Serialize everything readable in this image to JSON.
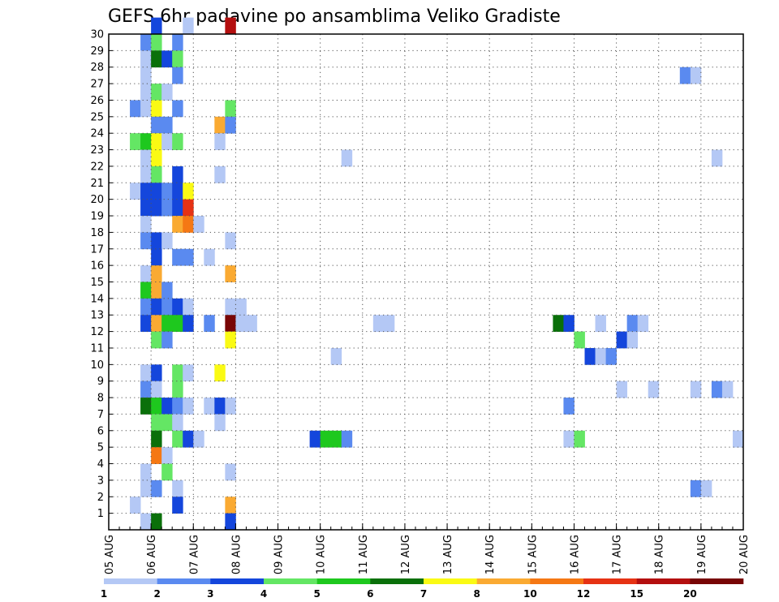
{
  "chart_data": {
    "type": "heatmap",
    "title": "GEFS 6hr padavine po ansamblima Veliko Gradiste",
    "xlabel": "",
    "ylabel": "",
    "x_ticks": [
      "05 AUG",
      "06 AUG",
      "07 AUG",
      "08 AUG",
      "09 AUG",
      "10 AUG",
      "11 AUG",
      "12 AUG",
      "13 AUG",
      "14 AUG",
      "15 AUG",
      "16 AUG",
      "17 AUG",
      "18 AUG",
      "19 AUG",
      "20 AUG"
    ],
    "y_ticks": [
      "1",
      "2",
      "3",
      "4",
      "5",
      "6",
      "7",
      "8",
      "9",
      "10",
      "11",
      "12",
      "13",
      "14",
      "15",
      "16",
      "17",
      "18",
      "19",
      "20",
      "21",
      "22",
      "23",
      "24",
      "25",
      "26",
      "27",
      "28",
      "29",
      "30"
    ],
    "y_range": [
      0,
      30
    ],
    "x_steps_per_day": 4,
    "x_total_steps": 60,
    "grid": true,
    "legend_position": "bottom",
    "legend": {
      "labels": [
        "1",
        "2",
        "3",
        "4",
        "5",
        "6",
        "7",
        "8",
        "10",
        "12",
        "15",
        "20"
      ],
      "colors": [
        "#b4c8f5",
        "#5a8af0",
        "#1446dc",
        "#64e664",
        "#1ec81e",
        "#0a700a",
        "#fafa14",
        "#faaa32",
        "#f57814",
        "#e63214",
        "#b40f0f",
        "#780505"
      ]
    },
    "cells": [
      [
        4,
        30,
        "#1446dc"
      ],
      [
        7,
        30,
        "#b4c8f5"
      ],
      [
        11,
        30,
        "#b40f0f"
      ],
      [
        3,
        29,
        "#5a8af0"
      ],
      [
        4,
        29,
        "#64e664"
      ],
      [
        6,
        29,
        "#5a8af0"
      ],
      [
        3,
        28,
        "#b4c8f5"
      ],
      [
        4,
        28,
        "#0a700a"
      ],
      [
        5,
        28,
        "#1446dc"
      ],
      [
        6,
        28,
        "#64e664"
      ],
      [
        3,
        27,
        "#b4c8f5"
      ],
      [
        6,
        27,
        "#5a8af0"
      ],
      [
        54,
        27,
        "#5a8af0"
      ],
      [
        55,
        27,
        "#b4c8f5"
      ],
      [
        3,
        26,
        "#b4c8f5"
      ],
      [
        4,
        26,
        "#64e664"
      ],
      [
        5,
        26,
        "#b4c8f5"
      ],
      [
        2,
        25,
        "#5a8af0"
      ],
      [
        3,
        25,
        "#b4c8f5"
      ],
      [
        4,
        25,
        "#fafa14"
      ],
      [
        6,
        25,
        "#5a8af0"
      ],
      [
        11,
        25,
        "#64e664"
      ],
      [
        4,
        24,
        "#5a8af0"
      ],
      [
        5,
        24,
        "#5a8af0"
      ],
      [
        10,
        24,
        "#faaa32"
      ],
      [
        11,
        24,
        "#5a8af0"
      ],
      [
        2,
        23,
        "#64e664"
      ],
      [
        3,
        23,
        "#1ec81e"
      ],
      [
        4,
        23,
        "#fafa14"
      ],
      [
        5,
        23,
        "#b4c8f5"
      ],
      [
        6,
        23,
        "#64e664"
      ],
      [
        10,
        23,
        "#b4c8f5"
      ],
      [
        3,
        22,
        "#b4c8f5"
      ],
      [
        4,
        22,
        "#fafa14"
      ],
      [
        22,
        22,
        "#b4c8f5"
      ],
      [
        57,
        22,
        "#b4c8f5"
      ],
      [
        3,
        21,
        "#b4c8f5"
      ],
      [
        4,
        21,
        "#64e664"
      ],
      [
        6,
        21,
        "#1446dc"
      ],
      [
        10,
        21,
        "#b4c8f5"
      ],
      [
        2,
        20,
        "#b4c8f5"
      ],
      [
        3,
        20,
        "#1446dc"
      ],
      [
        4,
        20,
        "#1446dc"
      ],
      [
        5,
        20,
        "#5a8af0"
      ],
      [
        6,
        20,
        "#1446dc"
      ],
      [
        7,
        20,
        "#fafa14"
      ],
      [
        3,
        19,
        "#1446dc"
      ],
      [
        4,
        19,
        "#1446dc"
      ],
      [
        5,
        19,
        "#5a8af0"
      ],
      [
        6,
        19,
        "#1446dc"
      ],
      [
        7,
        19,
        "#e63214"
      ],
      [
        3,
        18,
        "#b4c8f5"
      ],
      [
        6,
        18,
        "#faaa32"
      ],
      [
        7,
        18,
        "#f57814"
      ],
      [
        8,
        18,
        "#b4c8f5"
      ],
      [
        3,
        17,
        "#5a8af0"
      ],
      [
        4,
        17,
        "#1446dc"
      ],
      [
        5,
        17,
        "#b4c8f5"
      ],
      [
        11,
        17,
        "#b4c8f5"
      ],
      [
        4,
        16,
        "#1446dc"
      ],
      [
        6,
        16,
        "#5a8af0"
      ],
      [
        7,
        16,
        "#5a8af0"
      ],
      [
        9,
        16,
        "#b4c8f5"
      ],
      [
        3,
        15,
        "#b4c8f5"
      ],
      [
        4,
        15,
        "#faaa32"
      ],
      [
        11,
        15,
        "#faaa32"
      ],
      [
        3,
        14,
        "#1ec81e"
      ],
      [
        4,
        14,
        "#faaa32"
      ],
      [
        5,
        14,
        "#5a8af0"
      ],
      [
        3,
        13,
        "#5a8af0"
      ],
      [
        4,
        13,
        "#1446dc"
      ],
      [
        5,
        13,
        "#5a8af0"
      ],
      [
        6,
        13,
        "#1446dc"
      ],
      [
        7,
        13,
        "#b4c8f5"
      ],
      [
        11,
        13,
        "#b4c8f5"
      ],
      [
        12,
        13,
        "#b4c8f5"
      ],
      [
        3,
        12,
        "#1446dc"
      ],
      [
        4,
        12,
        "#faaa32"
      ],
      [
        5,
        12,
        "#1ec81e"
      ],
      [
        6,
        12,
        "#1ec81e"
      ],
      [
        7,
        12,
        "#1446dc"
      ],
      [
        9,
        12,
        "#5a8af0"
      ],
      [
        11,
        12,
        "#780505"
      ],
      [
        12,
        12,
        "#b4c8f5"
      ],
      [
        13,
        12,
        "#b4c8f5"
      ],
      [
        25,
        12,
        "#b4c8f5"
      ],
      [
        26,
        12,
        "#b4c8f5"
      ],
      [
        42,
        12,
        "#0a700a"
      ],
      [
        43,
        12,
        "#1446dc"
      ],
      [
        46,
        12,
        "#b4c8f5"
      ],
      [
        49,
        12,
        "#5a8af0"
      ],
      [
        50,
        12,
        "#b4c8f5"
      ],
      [
        4,
        11,
        "#64e664"
      ],
      [
        5,
        11,
        "#5a8af0"
      ],
      [
        11,
        11,
        "#fafa14"
      ],
      [
        44,
        11,
        "#64e664"
      ],
      [
        48,
        11,
        "#1446dc"
      ],
      [
        49,
        11,
        "#b4c8f5"
      ],
      [
        21,
        10,
        "#b4c8f5"
      ],
      [
        45,
        10,
        "#1446dc"
      ],
      [
        46,
        10,
        "#b4c8f5"
      ],
      [
        47,
        10,
        "#5a8af0"
      ],
      [
        3,
        9,
        "#b4c8f5"
      ],
      [
        4,
        9,
        "#1446dc"
      ],
      [
        6,
        9,
        "#64e664"
      ],
      [
        7,
        9,
        "#b4c8f5"
      ],
      [
        10,
        9,
        "#fafa14"
      ],
      [
        3,
        8,
        "#5a8af0"
      ],
      [
        4,
        8,
        "#b4c8f5"
      ],
      [
        6,
        8,
        "#64e664"
      ],
      [
        48,
        8,
        "#b4c8f5"
      ],
      [
        51,
        8,
        "#b4c8f5"
      ],
      [
        55,
        8,
        "#b4c8f5"
      ],
      [
        57,
        8,
        "#5a8af0"
      ],
      [
        58,
        8,
        "#b4c8f5"
      ],
      [
        3,
        7,
        "#0a700a"
      ],
      [
        4,
        7,
        "#1ec81e"
      ],
      [
        5,
        7,
        "#1446dc"
      ],
      [
        6,
        7,
        "#5a8af0"
      ],
      [
        7,
        7,
        "#b4c8f5"
      ],
      [
        9,
        7,
        "#b4c8f5"
      ],
      [
        10,
        7,
        "#1446dc"
      ],
      [
        11,
        7,
        "#b4c8f5"
      ],
      [
        43,
        7,
        "#5a8af0"
      ],
      [
        4,
        6,
        "#64e664"
      ],
      [
        5,
        6,
        "#64e664"
      ],
      [
        6,
        6,
        "#b4c8f5"
      ],
      [
        10,
        6,
        "#b4c8f5"
      ],
      [
        4,
        5,
        "#0a700a"
      ],
      [
        6,
        5,
        "#64e664"
      ],
      [
        7,
        5,
        "#1446dc"
      ],
      [
        8,
        5,
        "#b4c8f5"
      ],
      [
        19,
        5,
        "#1446dc"
      ],
      [
        20,
        5,
        "#1ec81e"
      ],
      [
        21,
        5,
        "#1ec81e"
      ],
      [
        22,
        5,
        "#5a8af0"
      ],
      [
        43,
        5,
        "#b4c8f5"
      ],
      [
        44,
        5,
        "#64e664"
      ],
      [
        59,
        5,
        "#b4c8f5"
      ],
      [
        4,
        4,
        "#f57814"
      ],
      [
        5,
        4,
        "#b4c8f5"
      ],
      [
        3,
        3,
        "#b4c8f5"
      ],
      [
        5,
        3,
        "#64e664"
      ],
      [
        11,
        3,
        "#b4c8f5"
      ],
      [
        3,
        2,
        "#b4c8f5"
      ],
      [
        4,
        2,
        "#5a8af0"
      ],
      [
        6,
        2,
        "#b4c8f5"
      ],
      [
        55,
        2,
        "#5a8af0"
      ],
      [
        56,
        2,
        "#b4c8f5"
      ],
      [
        2,
        1,
        "#b4c8f5"
      ],
      [
        6,
        1,
        "#1446dc"
      ],
      [
        11,
        1,
        "#faaa32"
      ],
      [
        3,
        0,
        "#b4c8f5"
      ],
      [
        4,
        0,
        "#0a700a"
      ],
      [
        11,
        0,
        "#1446dc"
      ]
    ]
  }
}
